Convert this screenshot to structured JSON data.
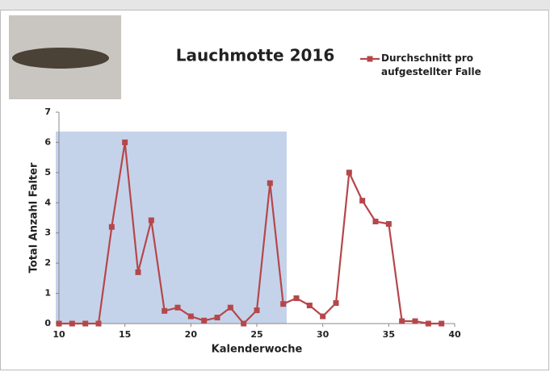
{
  "chart_data": {
    "type": "line",
    "title": "Lauchmotte 2016",
    "x": [
      10,
      11,
      12,
      13,
      14,
      15,
      16,
      17,
      18,
      19,
      20,
      21,
      22,
      23,
      24,
      25,
      26,
      27,
      28,
      29,
      30,
      31,
      32,
      33,
      34,
      35,
      36,
      37,
      38,
      39
    ],
    "series": [
      {
        "name": "Durchschnitt pro aufgestellter Falle",
        "color": "#b5474b",
        "values": [
          0,
          0,
          0,
          0,
          3.2,
          6.0,
          1.7,
          3.42,
          0.42,
          0.53,
          0.24,
          0.1,
          0.2,
          0.53,
          0,
          0.44,
          4.65,
          0.65,
          0.84,
          0.6,
          0.24,
          0.68,
          5.0,
          4.07,
          3.38,
          3.3,
          0.08,
          0.08,
          0,
          0
        ]
      }
    ],
    "xlabel": "Kalenderwoche",
    "ylabel": "Total Anzahl Falter",
    "xlim": [
      10,
      40
    ],
    "xticks": [
      10,
      15,
      20,
      25,
      30,
      35,
      40
    ],
    "ylim": [
      0,
      7
    ],
    "yticks": [
      0,
      1,
      2,
      3,
      4,
      5,
      6,
      7
    ],
    "legend": "top-right"
  }
}
